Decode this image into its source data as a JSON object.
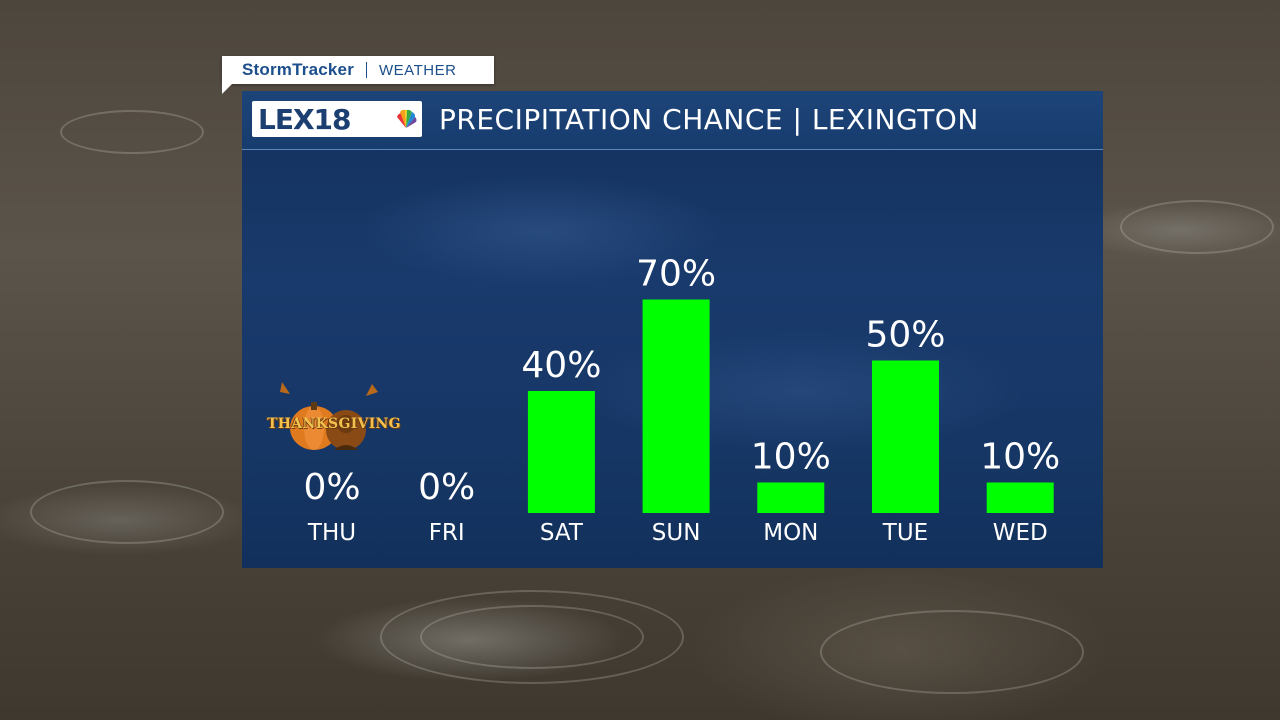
{
  "tag": {
    "brand": "StormTracker",
    "section": "WEATHER"
  },
  "header": {
    "logo": "LEX18",
    "title": "PRECIPITATION CHANCE | LEXINGTON"
  },
  "badge": {
    "label": "THANKSGIVING"
  },
  "colors": {
    "bar": "#00ff00",
    "panel": "#163665",
    "text": "#ffffff"
  },
  "chart_data": {
    "type": "bar",
    "title": "PRECIPITATION CHANCE | LEXINGTON",
    "categories": [
      "THU",
      "FRI",
      "SAT",
      "SUN",
      "MON",
      "TUE",
      "WED"
    ],
    "values": [
      0,
      0,
      40,
      70,
      10,
      50,
      10
    ],
    "value_labels": [
      "0%",
      "0%",
      "40%",
      "70%",
      "10%",
      "50%",
      "10%"
    ],
    "ylim": [
      0,
      100
    ],
    "grid": false
  }
}
